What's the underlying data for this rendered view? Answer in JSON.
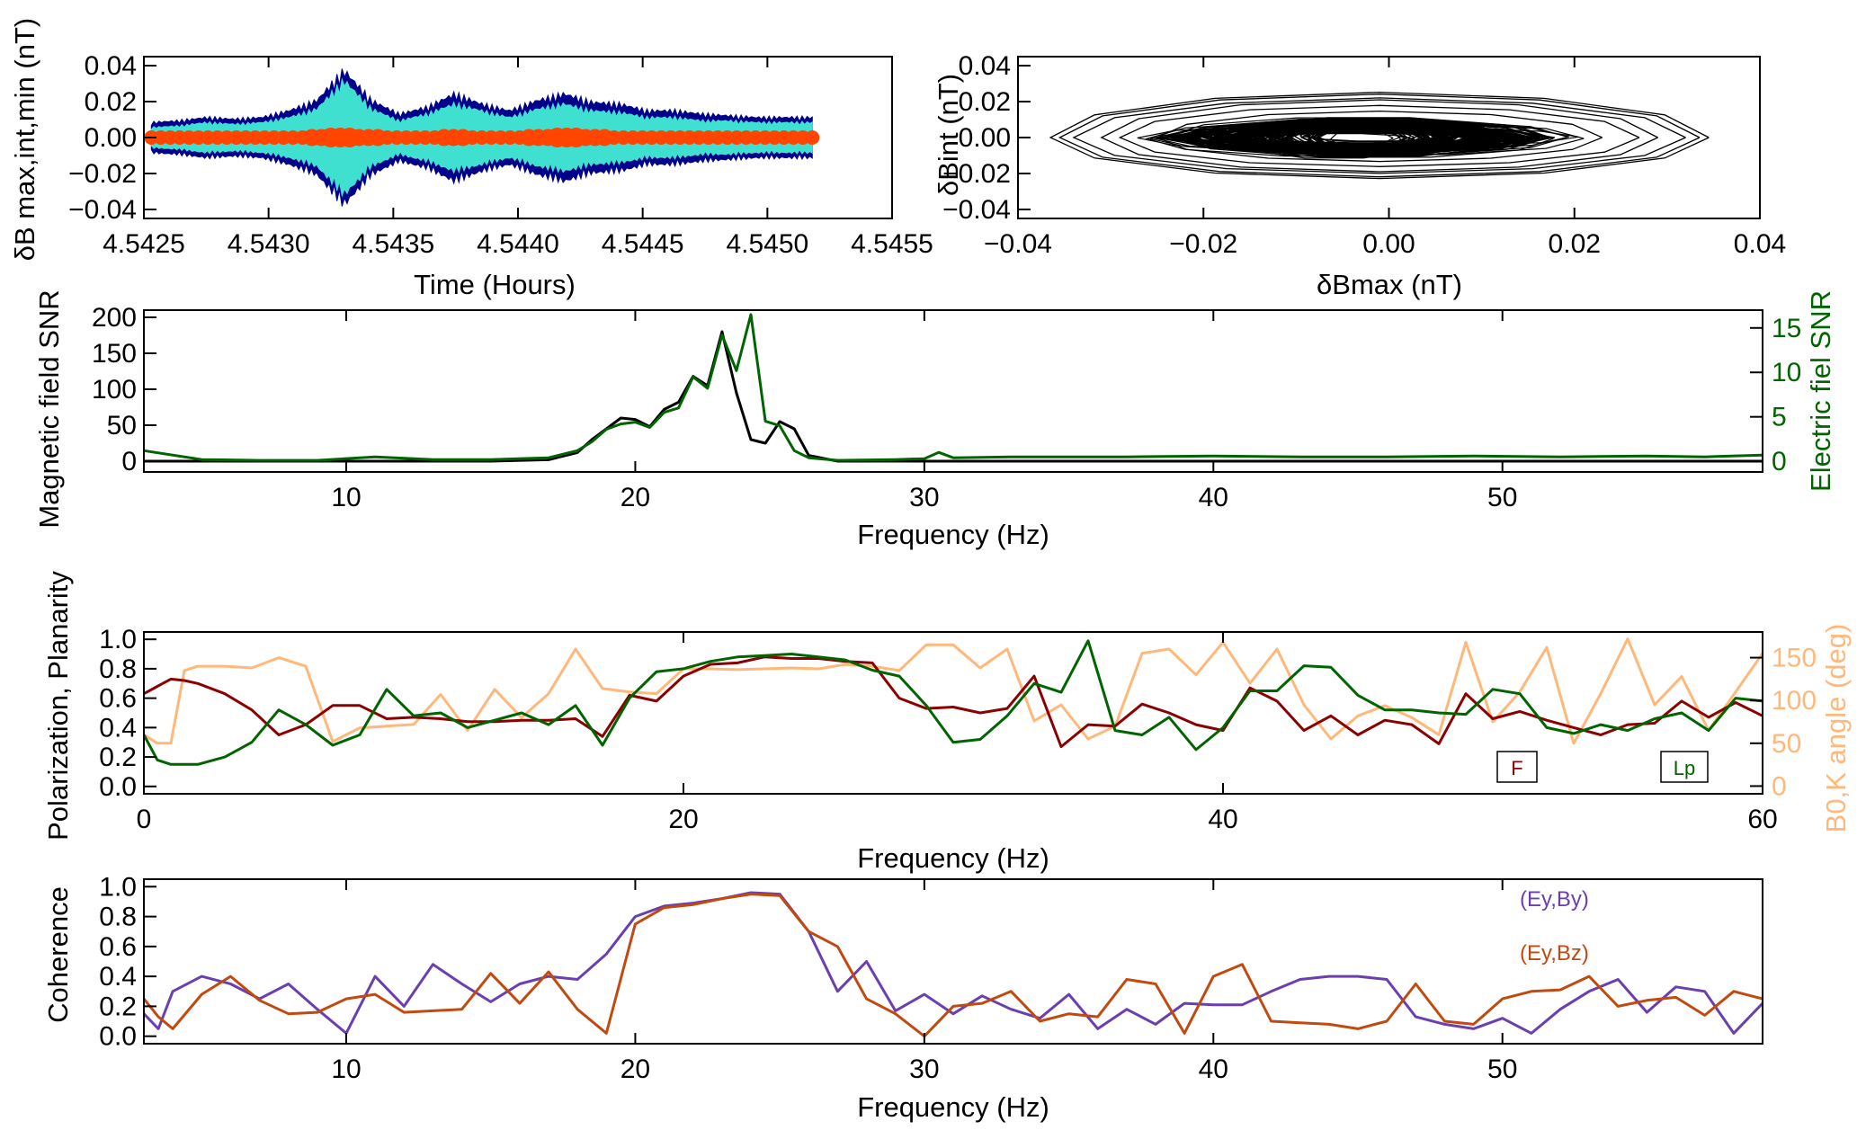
{
  "chart_data": [
    {
      "id": "p1",
      "type": "area",
      "xlabel": "Time (Hours)",
      "ylabel": "δB max,int,min (nT)",
      "xlim": [
        4.5425,
        4.5455
      ],
      "ylim": [
        -0.045,
        0.045
      ],
      "xticks": [
        "4.5425",
        "4.5430",
        "4.5435",
        "4.5440",
        "4.5445",
        "4.5450",
        "4.5455"
      ],
      "yticks": [
        "0.04",
        "0.02",
        "0.00",
        "−0.02",
        "−0.04"
      ],
      "xrange_data": [
        4.54253,
        4.54518
      ],
      "series": [
        {
          "color": "#00008b",
          "envelope": [
            0.009,
            0.01,
            0.012,
            0.011,
            0.012,
            0.016,
            0.022,
            0.04,
            0.022,
            0.014,
            0.018,
            0.026,
            0.02,
            0.016,
            0.022,
            0.026,
            0.021,
            0.02,
            0.016,
            0.016,
            0.014,
            0.013,
            0.012,
            0.012,
            0.012
          ]
        },
        {
          "color": "#40e0d0",
          "envelope": [
            0.006,
            0.007,
            0.009,
            0.008,
            0.009,
            0.012,
            0.017,
            0.034,
            0.017,
            0.01,
            0.014,
            0.02,
            0.016,
            0.012,
            0.017,
            0.02,
            0.016,
            0.015,
            0.012,
            0.012,
            0.01,
            0.01,
            0.009,
            0.009,
            0.009
          ]
        },
        {
          "color": "#ff4500",
          "envelope": [
            0.002,
            0.002,
            0.002,
            0.002,
            0.002,
            0.002,
            0.003,
            0.004,
            0.003,
            0.002,
            0.002,
            0.003,
            0.002,
            0.002,
            0.003,
            0.004,
            0.003,
            0.002,
            0.002,
            0.002,
            0.002,
            0.002,
            0.002,
            0.002,
            0.002
          ]
        }
      ]
    },
    {
      "id": "p2",
      "type": "line",
      "xlabel": "δBmax (nT)",
      "ylabel": "δBint (nT)",
      "xlim": [
        -0.04,
        0.04
      ],
      "ylim": [
        -0.045,
        0.045
      ],
      "xticks": [
        "−0.04",
        "−0.02",
        "0.00",
        "0.02",
        "0.04"
      ],
      "yticks": [
        "0.04",
        "0.02",
        "0.00",
        "−0.02",
        "−0.04"
      ],
      "hodogram": {
        "center": [
          -0.003,
          0.0
        ],
        "core_rx": 0.022,
        "core_ry": 0.01,
        "outer_x": [
          -0.0355,
          0.0355
        ],
        "outer_y": [
          -0.022,
          0.025
        ],
        "color": "#000000"
      }
    },
    {
      "id": "p3",
      "type": "line",
      "xlabel": "Frequency (Hz)",
      "ylabel": "Magnetic field SNR",
      "y2label": "Electric fiel SNR",
      "xlim": [
        3,
        59
      ],
      "ylim": [
        -15,
        210
      ],
      "y2lim": [
        -1.2,
        17
      ],
      "xticks": [
        "10",
        "20",
        "30",
        "40",
        "50"
      ],
      "xtick_values": [
        10,
        20,
        30,
        40,
        50
      ],
      "yticks": [
        "200",
        "150",
        "100",
        "50",
        "0"
      ],
      "ytick_values": [
        200,
        150,
        100,
        50,
        0
      ],
      "y2ticks": [
        "15",
        "10",
        "5",
        "0"
      ],
      "y2tick_values": [
        15,
        10,
        5,
        0
      ],
      "x": [
        3,
        5,
        7,
        9,
        11,
        13,
        15,
        17,
        18,
        18.5,
        19,
        19.5,
        20,
        20.5,
        21,
        21.5,
        22,
        22.5,
        23,
        23.5,
        24,
        24.5,
        25,
        25.5,
        26,
        27,
        29,
        30,
        30.5,
        31,
        33,
        35,
        37,
        40,
        43,
        46,
        49,
        52,
        55,
        57,
        59
      ],
      "series": [
        {
          "name": "Magnetic field SNR",
          "axis": "y",
          "color": "#000000",
          "values": [
            0,
            0,
            0,
            0,
            0,
            0,
            0,
            2,
            12,
            30,
            45,
            60,
            58,
            48,
            72,
            82,
            118,
            105,
            180,
            95,
            30,
            25,
            55,
            45,
            8,
            0,
            0,
            0,
            0,
            0,
            0,
            0,
            0,
            0,
            0,
            0,
            0,
            0,
            0,
            0,
            0
          ]
        },
        {
          "name": "Electric fiel SNR",
          "axis": "y2",
          "color": "#006400",
          "values": [
            1.2,
            0.2,
            0.1,
            0.1,
            0.5,
            0.2,
            0.2,
            0.4,
            1.2,
            2.2,
            3.6,
            4.2,
            4.4,
            3.8,
            5.5,
            6.0,
            9.5,
            8.2,
            14.2,
            10.2,
            16.5,
            4.5,
            4.0,
            1.2,
            0.4,
            0.1,
            0.2,
            0.3,
            1.0,
            0.4,
            0.5,
            0.5,
            0.5,
            0.6,
            0.5,
            0.5,
            0.6,
            0.5,
            0.6,
            0.5,
            0.7
          ]
        }
      ]
    },
    {
      "id": "p4",
      "type": "line",
      "xlabel": "Frequency (Hz)",
      "ylabel": "Polarization, Planarity",
      "y2label": "B0,K angle (deg)",
      "xlim": [
        0,
        60
      ],
      "ylim": [
        -0.05,
        1.05
      ],
      "y2lim": [
        -9,
        180
      ],
      "xticks": [
        "0",
        "20",
        "40",
        "60"
      ],
      "xtick_values": [
        0,
        20,
        40,
        60
      ],
      "yticks": [
        "1.0",
        "0.8",
        "0.6",
        "0.4",
        "0.2",
        "0.0"
      ],
      "ytick_values": [
        1.0,
        0.8,
        0.6,
        0.4,
        0.2,
        0.0
      ],
      "y2ticks": [
        "150",
        "100",
        "50",
        "0"
      ],
      "y2tick_values": [
        150,
        100,
        50,
        0
      ],
      "legend": [
        {
          "label": "F",
          "color": "#8b0000"
        },
        {
          "label": "Lp",
          "color": "#006400"
        }
      ],
      "x": [
        0,
        0.5,
        1,
        1.5,
        2,
        3,
        4,
        5,
        6,
        7,
        8,
        9,
        10,
        11,
        12,
        13,
        14,
        15,
        16,
        17,
        18,
        19,
        20,
        21,
        22,
        23,
        24,
        25,
        26,
        27,
        28,
        29,
        30,
        31,
        32,
        33,
        34,
        35,
        36,
        37,
        38,
        39,
        40,
        41,
        42,
        43,
        44,
        45,
        46,
        47,
        48,
        49,
        50,
        51,
        52,
        53,
        54,
        55,
        56,
        57,
        58,
        59,
        60
      ],
      "series": [
        {
          "name": "F",
          "axis": "y",
          "color": "#8b0000",
          "values": [
            0.63,
            0.68,
            0.73,
            0.72,
            0.7,
            0.63,
            0.52,
            0.35,
            0.42,
            0.55,
            0.55,
            0.46,
            0.47,
            0.46,
            0.44,
            0.44,
            0.45,
            0.45,
            0.46,
            0.34,
            0.62,
            0.58,
            0.75,
            0.83,
            0.84,
            0.88,
            0.87,
            0.87,
            0.85,
            0.84,
            0.6,
            0.53,
            0.54,
            0.5,
            0.53,
            0.75,
            0.27,
            0.42,
            0.41,
            0.56,
            0.5,
            0.42,
            0.38,
            0.67,
            0.58,
            0.38,
            0.48,
            0.35,
            0.45,
            0.42,
            0.29,
            0.63,
            0.46,
            0.51,
            0.45,
            0.4,
            0.35,
            0.42,
            0.43,
            0.58,
            0.47,
            0.57,
            0.48
          ]
        },
        {
          "name": "Lp",
          "axis": "y",
          "color": "#006400",
          "values": [
            0.35,
            0.18,
            0.15,
            0.15,
            0.15,
            0.2,
            0.3,
            0.52,
            0.42,
            0.28,
            0.35,
            0.66,
            0.48,
            0.5,
            0.4,
            0.45,
            0.5,
            0.42,
            0.55,
            0.28,
            0.6,
            0.78,
            0.8,
            0.85,
            0.88,
            0.89,
            0.9,
            0.88,
            0.86,
            0.79,
            0.75,
            0.55,
            0.3,
            0.32,
            0.48,
            0.7,
            0.64,
            0.99,
            0.38,
            0.35,
            0.47,
            0.25,
            0.4,
            0.65,
            0.65,
            0.82,
            0.81,
            0.62,
            0.52,
            0.52,
            0.5,
            0.49,
            0.66,
            0.63,
            0.4,
            0.36,
            0.42,
            0.38,
            0.46,
            0.5,
            0.38,
            0.6,
            0.58
          ]
        },
        {
          "name": "B0,K angle",
          "axis": "y2",
          "color": "#ffb87a",
          "values": [
            60,
            50,
            50,
            135,
            140,
            140,
            138,
            150,
            140,
            52,
            68,
            70,
            72,
            107,
            65,
            113,
            80,
            108,
            160,
            114,
            110,
            108,
            137,
            137,
            136,
            137,
            138,
            137,
            142,
            140,
            135,
            165,
            165,
            138,
            160,
            76,
            95,
            55,
            70,
            155,
            160,
            130,
            168,
            120,
            160,
            95,
            55,
            82,
            94,
            80,
            60,
            168,
            75,
            110,
            162,
            50,
            108,
            172,
            95,
            128,
            65,
            110,
            155
          ]
        }
      ]
    },
    {
      "id": "p5",
      "type": "line",
      "xlabel": "Frequency (Hz)",
      "ylabel": "Coherence",
      "xlim": [
        3,
        59
      ],
      "ylim": [
        -0.05,
        1.05
      ],
      "xticks": [
        "10",
        "20",
        "30",
        "40",
        "50"
      ],
      "xtick_values": [
        10,
        20,
        30,
        40,
        50
      ],
      "yticks": [
        "1.0",
        "0.8",
        "0.6",
        "0.4",
        "0.2",
        "0.0"
      ],
      "ytick_values": [
        1.0,
        0.8,
        0.6,
        0.4,
        0.2,
        0.0
      ],
      "x": [
        3,
        3.5,
        4,
        5,
        6,
        7,
        8,
        9,
        10,
        11,
        12,
        13,
        14,
        15,
        16,
        17,
        18,
        19,
        20,
        21,
        22,
        23,
        24,
        25,
        26,
        27,
        28,
        29,
        30,
        31,
        32,
        33,
        34,
        35,
        36,
        37,
        38,
        39,
        40,
        41,
        42,
        43,
        44,
        45,
        46,
        47,
        48,
        49,
        50,
        51,
        52,
        53,
        54,
        55,
        56,
        57,
        58,
        59
      ],
      "series": [
        {
          "name": "(Ey,By)",
          "axis": "y",
          "color": "#6a3fb0",
          "values": [
            0.15,
            0.05,
            0.3,
            0.4,
            0.35,
            0.25,
            0.35,
            0.18,
            0.02,
            0.4,
            0.2,
            0.48,
            0.35,
            0.23,
            0.35,
            0.4,
            0.38,
            0.55,
            0.8,
            0.87,
            0.89,
            0.92,
            0.96,
            0.95,
            0.7,
            0.3,
            0.5,
            0.17,
            0.28,
            0.15,
            0.27,
            0.18,
            0.12,
            0.28,
            0.05,
            0.18,
            0.08,
            0.22,
            0.21,
            0.21,
            0.3,
            0.38,
            0.4,
            0.4,
            0.38,
            0.13,
            0.08,
            0.05,
            0.12,
            0.02,
            0.18,
            0.3,
            0.38,
            0.16,
            0.33,
            0.3,
            0.02,
            0.22
          ]
        },
        {
          "name": "(Ey,Bz)",
          "axis": "y",
          "color": "#c04a10",
          "values": [
            0.25,
            0.13,
            0.05,
            0.28,
            0.4,
            0.24,
            0.15,
            0.16,
            0.25,
            0.28,
            0.16,
            0.17,
            0.18,
            0.42,
            0.22,
            0.43,
            0.18,
            0.02,
            0.75,
            0.86,
            0.88,
            0.92,
            0.95,
            0.94,
            0.7,
            0.6,
            0.25,
            0.15,
            0.0,
            0.2,
            0.22,
            0.3,
            0.1,
            0.15,
            0.13,
            0.38,
            0.35,
            0.02,
            0.4,
            0.48,
            0.1,
            0.09,
            0.08,
            0.05,
            0.1,
            0.35,
            0.1,
            0.08,
            0.25,
            0.3,
            0.31,
            0.4,
            0.2,
            0.24,
            0.26,
            0.14,
            0.3,
            0.25
          ]
        }
      ]
    }
  ]
}
